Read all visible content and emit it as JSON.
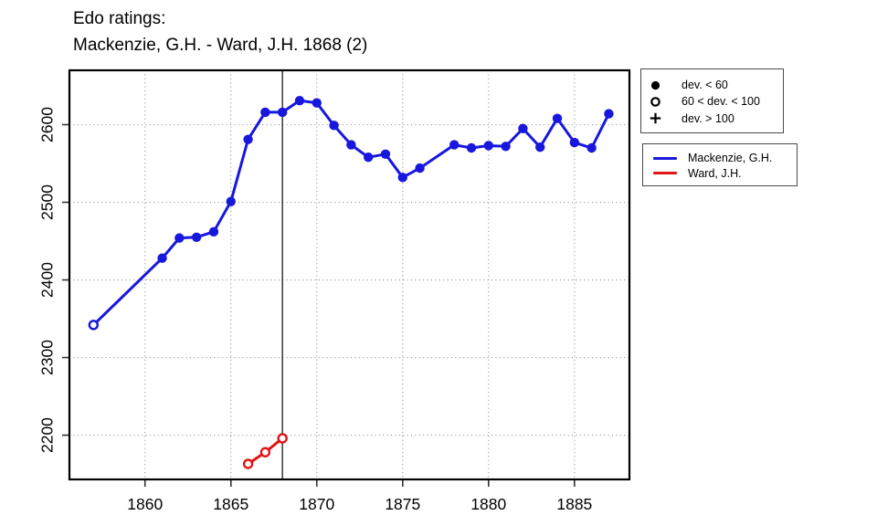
{
  "title": {
    "line1": "Edo ratings:",
    "line2": "Mackenzie, G.H. - Ward, J.H. 1868 (2)"
  },
  "colors": {
    "mackenzie": "#1717dd",
    "ward": "#e01414",
    "grid": "#8c8c8c",
    "axis_box": "#000000",
    "tick": "#333333",
    "event_line": "#1a1a1a",
    "symbol": "#000000"
  },
  "symbol_legend": {
    "items": [
      {
        "symbol": "filled-circle",
        "label": "dev. < 60"
      },
      {
        "symbol": "open-circle",
        "label": "60 < dev. < 100"
      },
      {
        "symbol": "plus",
        "label": "dev. > 100"
      }
    ]
  },
  "series_legend": {
    "items": [
      {
        "series": "mackenzie",
        "label": "Mackenzie, G.H."
      },
      {
        "series": "ward",
        "label": "Ward, J.H."
      }
    ]
  },
  "chart_data": {
    "type": "line",
    "title": "Edo ratings: Mackenzie, G.H. - Ward, J.H. 1868 (2)",
    "xlabel": "",
    "ylabel": "",
    "xlim": [
      1855.6,
      1888.2
    ],
    "ylim": [
      2143,
      2670
    ],
    "x_ticks": [
      1860,
      1865,
      1870,
      1875,
      1880,
      1885
    ],
    "y_ticks": [
      2200,
      2300,
      2400,
      2500,
      2600
    ],
    "grid": true,
    "legend_position": "right",
    "event_line_x": 1868,
    "marker_key": {
      "filled": "dev. < 60",
      "open": "60 < dev. < 100",
      "plus": "dev. > 100"
    },
    "series": [
      {
        "name": "Mackenzie, G.H.",
        "color_key": "mackenzie",
        "points": [
          {
            "x": 1857,
            "y": 2342,
            "marker": "open"
          },
          {
            "x": 1861,
            "y": 2428,
            "marker": "filled"
          },
          {
            "x": 1862,
            "y": 2454,
            "marker": "filled"
          },
          {
            "x": 1863,
            "y": 2455,
            "marker": "filled"
          },
          {
            "x": 1864,
            "y": 2462,
            "marker": "filled"
          },
          {
            "x": 1865,
            "y": 2501,
            "marker": "filled"
          },
          {
            "x": 1866,
            "y": 2581,
            "marker": "filled"
          },
          {
            "x": 1867,
            "y": 2616,
            "marker": "filled"
          },
          {
            "x": 1868,
            "y": 2616,
            "marker": "filled"
          },
          {
            "x": 1869,
            "y": 2631,
            "marker": "filled"
          },
          {
            "x": 1870,
            "y": 2628,
            "marker": "filled"
          },
          {
            "x": 1871,
            "y": 2599,
            "marker": "filled"
          },
          {
            "x": 1872,
            "y": 2574,
            "marker": "filled"
          },
          {
            "x": 1873,
            "y": 2558,
            "marker": "filled"
          },
          {
            "x": 1874,
            "y": 2562,
            "marker": "filled"
          },
          {
            "x": 1875,
            "y": 2532,
            "marker": "filled"
          },
          {
            "x": 1876,
            "y": 2544,
            "marker": "filled"
          },
          {
            "x": 1878,
            "y": 2574,
            "marker": "filled"
          },
          {
            "x": 1879,
            "y": 2570,
            "marker": "filled"
          },
          {
            "x": 1880,
            "y": 2573,
            "marker": "filled"
          },
          {
            "x": 1881,
            "y": 2572,
            "marker": "filled"
          },
          {
            "x": 1882,
            "y": 2595,
            "marker": "filled"
          },
          {
            "x": 1883,
            "y": 2571,
            "marker": "filled"
          },
          {
            "x": 1884,
            "y": 2608,
            "marker": "filled"
          },
          {
            "x": 1885,
            "y": 2577,
            "marker": "filled"
          },
          {
            "x": 1886,
            "y": 2570,
            "marker": "filled"
          },
          {
            "x": 1887,
            "y": 2614,
            "marker": "filled"
          }
        ]
      },
      {
        "name": "Ward, J.H.",
        "color_key": "ward",
        "points": [
          {
            "x": 1866,
            "y": 2163,
            "marker": "open"
          },
          {
            "x": 1867,
            "y": 2178,
            "marker": "open"
          },
          {
            "x": 1868,
            "y": 2196,
            "marker": "open"
          }
        ]
      }
    ]
  }
}
